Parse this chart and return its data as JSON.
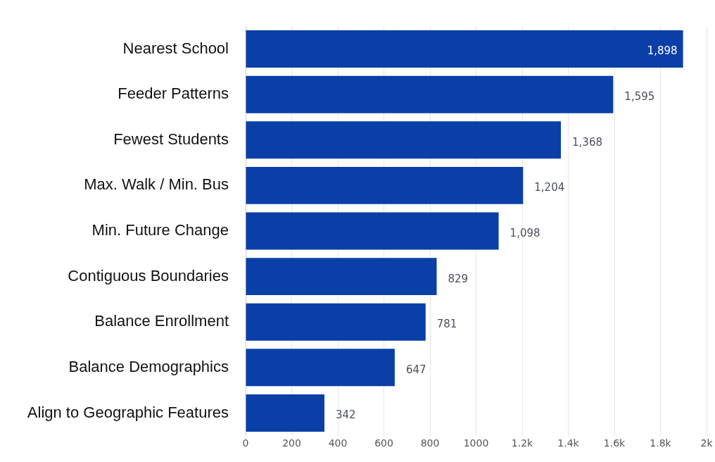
{
  "chart_data": {
    "type": "bar",
    "orientation": "horizontal",
    "categories": [
      "Nearest School",
      "Feeder Patterns",
      "Fewest Students",
      "Max. Walk / Min. Bus",
      "Min. Future Change",
      "Contiguous Boundaries",
      "Balance Enrollment",
      "Balance Demographics",
      "Align to Geographic Features"
    ],
    "values": [
      1898,
      1595,
      1368,
      1204,
      1098,
      829,
      781,
      647,
      342
    ],
    "value_labels": [
      "1,898",
      "1,595",
      "1,368",
      "1,204",
      "1,098",
      "829",
      "781",
      "647",
      "342"
    ],
    "color": "#0a3fa8",
    "xlim": [
      0,
      2000
    ],
    "xticks": [
      0,
      200,
      400,
      600,
      800,
      1000,
      {
        "value": 1200,
        "label": "1.2k"
      },
      {
        "value": 1400,
        "label": "1.4k"
      },
      {
        "value": 1600,
        "label": "1.6k"
      },
      {
        "value": 1800,
        "label": "1.8k"
      },
      {
        "value": 2000,
        "label": "2k"
      }
    ],
    "grid": "x",
    "legend": false
  }
}
